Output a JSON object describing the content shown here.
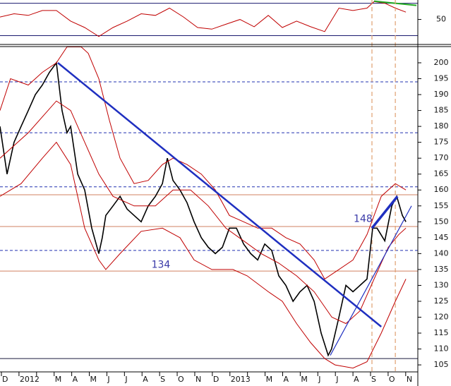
{
  "chart_data": [
    {
      "type": "line",
      "x": [
        -0.08,
        0.72,
        1.53,
        2.33,
        3.13,
        3.94,
        4.74,
        5.54,
        6.35,
        7.15,
        7.95,
        8.76,
        9.56,
        10.36,
        11.16,
        11.97,
        12.77,
        13.57,
        14.38,
        15.18,
        15.98,
        16.79,
        17.59,
        18.39,
        19.2,
        20,
        20.8,
        21.2,
        21.81,
        22.41,
        23.01
      ],
      "series": [
        {
          "color": "#c00000",
          "values": [
            53,
            57,
            55,
            61,
            61,
            48,
            40,
            29,
            40,
            48,
            57,
            55,
            64,
            53,
            40,
            38,
            44,
            50,
            41,
            55,
            40,
            48,
            41,
            35,
            64,
            61,
            64,
            72,
            70,
            64,
            59
          ]
        }
      ],
      "xlim": [
        -0.08,
        23.69
      ],
      "ylim": [
        20,
        74
      ],
      "yticks": [
        50
      ],
      "hlines": [
        {
          "value": 70,
          "color": "#1a1a6e"
        },
        {
          "value": 30,
          "color": "#1a1a6e"
        }
      ],
      "trendlines": [
        {
          "x": [
            21.2,
            23.61
          ],
          "y": [
            72.6,
            67.4
          ],
          "color": "#22aa22",
          "width": 2
        }
      ]
    },
    {
      "type": "line",
      "xlim": [
        -0.08,
        23.69
      ],
      "ylim": [
        102.8,
        205.1
      ],
      "yticks": [
        105,
        110,
        115,
        120,
        125,
        130,
        135,
        140,
        145,
        150,
        155,
        160,
        165,
        170,
        175,
        180,
        185,
        190,
        195,
        200
      ],
      "xticks": [
        {
          "value": 0,
          "label": "D"
        },
        {
          "value": 1,
          "label": "2012"
        },
        {
          "value": 2,
          "label": ""
        },
        {
          "value": 3,
          "label": "M"
        },
        {
          "value": 4,
          "label": "A"
        },
        {
          "value": 5,
          "label": "M"
        },
        {
          "value": 6,
          "label": "J"
        },
        {
          "value": 7,
          "label": "J"
        },
        {
          "value": 8,
          "label": "A"
        },
        {
          "value": 9,
          "label": "S"
        },
        {
          "value": 10,
          "label": "O"
        },
        {
          "value": 11,
          "label": "N"
        },
        {
          "value": 12,
          "label": "D"
        },
        {
          "value": 13,
          "label": "2013"
        },
        {
          "value": 14,
          "label": ""
        },
        {
          "value": 15,
          "label": "M"
        },
        {
          "value": 16,
          "label": "A"
        },
        {
          "value": 17,
          "label": "M"
        },
        {
          "value": 18,
          "label": "J"
        },
        {
          "value": 19,
          "label": "J"
        },
        {
          "value": 20,
          "label": "A"
        },
        {
          "value": 21,
          "label": "S"
        },
        {
          "value": 22,
          "label": "O"
        },
        {
          "value": 23,
          "label": "N"
        }
      ],
      "x": [
        -0.08,
        0.32,
        0.72,
        1.12,
        1.53,
        1.93,
        2.33,
        2.73,
        3.13,
        3.45,
        3.73,
        3.94,
        4.34,
        4.74,
        5.14,
        5.54,
        5.74,
        5.94,
        6.35,
        6.75,
        7.15,
        7.55,
        7.95,
        8.35,
        8.76,
        9.16,
        9.44,
        9.76,
        10.16,
        10.56,
        10.96,
        11.37,
        11.77,
        12.17,
        12.57,
        12.97,
        13.37,
        13.78,
        14.18,
        14.58,
        14.98,
        15.38,
        15.78,
        16.18,
        16.59,
        16.99,
        17.39,
        17.79,
        18.19,
        18.59,
        18.78,
        19.2,
        19.6,
        20,
        20.4,
        20.8,
        21.12,
        21.37,
        21.81,
        22.21,
        22.49,
        22.81,
        23.01
      ],
      "series": [
        {
          "color": "#000000",
          "width": 1.6,
          "values": [
            180,
            165,
            175,
            180,
            185,
            190,
            193,
            197,
            200,
            185,
            178,
            180,
            165,
            160,
            148,
            140,
            145,
            152,
            155,
            158,
            154,
            152,
            150,
            155,
            158,
            162,
            170,
            163,
            160,
            156,
            150,
            145,
            142,
            140,
            142,
            148,
            148,
            143,
            140,
            138,
            143,
            141,
            133,
            130,
            125,
            128,
            130,
            125,
            115,
            108,
            110,
            120,
            130,
            128,
            130,
            132,
            148,
            148,
            144,
            155,
            158,
            152,
            150
          ]
        },
        {
          "color": "#c00000",
          "width": 1,
          "x": [
            -0.08,
            0.52,
            1.53,
            2.33,
            3.13,
            3.73,
            4.54,
            4.94,
            5.54,
            6.14,
            6.75,
            7.55,
            8.35,
            9.16,
            9.76,
            10.56,
            11.37,
            12.17,
            12.97,
            13.78,
            14.58,
            15.38,
            16.18,
            16.99,
            17.79,
            18.39,
            19.2,
            20,
            20.8,
            21.61,
            22.41,
            23.01
          ],
          "values": [
            185,
            195,
            193,
            197,
            200,
            205,
            205,
            203,
            195,
            182,
            170,
            162,
            163,
            168,
            170,
            168,
            165,
            160,
            152,
            150,
            148,
            148,
            145,
            143,
            138,
            132,
            135,
            138,
            146,
            158,
            162,
            160
          ]
        },
        {
          "color": "#c00000",
          "width": 1,
          "x": [
            -0.08,
            1.53,
            3.13,
            3.94,
            4.74,
            5.54,
            6.35,
            7.55,
            8.76,
            9.76,
            10.76,
            11.77,
            12.77,
            13.78,
            14.78,
            15.78,
            16.79,
            17.79,
            18.8,
            19.6,
            20.4,
            21.2,
            22.01,
            22.61,
            23.01
          ],
          "values": [
            170,
            178,
            188,
            185,
            175,
            165,
            158,
            155,
            155,
            160,
            160,
            155,
            148,
            144,
            140,
            137,
            133,
            128,
            120,
            118,
            122,
            132,
            142,
            146,
            148
          ]
        },
        {
          "color": "#c00000",
          "width": 1,
          "x": [
            -0.08,
            1.12,
            2.33,
            3.13,
            3.94,
            4.74,
            5.54,
            5.94,
            6.75,
            7.95,
            9.16,
            10.16,
            10.96,
            11.97,
            13.17,
            13.98,
            15.18,
            15.98,
            16.79,
            17.59,
            18.39,
            18.98,
            20,
            20.8,
            21.61,
            22.41,
            23.01
          ],
          "values": [
            158,
            162,
            170,
            175,
            168,
            148,
            138,
            135,
            140,
            147,
            148,
            145,
            138,
            135,
            135,
            133,
            128,
            125,
            118,
            112,
            107,
            105,
            104,
            106,
            115,
            125,
            132
          ]
        }
      ],
      "hlines": [
        {
          "value": 158.5,
          "color": "#d08060"
        },
        {
          "value": 148.5,
          "color": "#d08060"
        },
        {
          "value": 134.5,
          "color": "#d08060"
        },
        {
          "value": 194,
          "color": "#2030b0",
          "dash": true
        },
        {
          "value": 178,
          "color": "#2030b0",
          "dash": true
        },
        {
          "value": 161,
          "color": "#2030b0",
          "dash": true
        },
        {
          "value": 141,
          "color": "#2030b0",
          "dash": true
        },
        {
          "value": 107,
          "color": "#1a1a3e"
        }
      ],
      "vlines": [
        {
          "value": 21.08,
          "color": "#e0a070"
        },
        {
          "value": 22.41,
          "color": "#e0a070"
        }
      ],
      "trendlines": [
        {
          "x": [
            3.21,
            21.61
          ],
          "y": [
            200,
            117
          ],
          "color": "#1f2fc0",
          "width": 2.5
        },
        {
          "x": [
            18.71,
            23.33
          ],
          "y": [
            108,
            155
          ],
          "color": "#1f2fc0",
          "width": 1.2
        },
        {
          "x": [
            21.08,
            22.53
          ],
          "y": [
            148,
            158
          ],
          "color": "#1f2fc0",
          "width": 3.5
        }
      ],
      "annotations": [
        {
          "text": "148"
        },
        {
          "text": "134"
        }
      ]
    }
  ]
}
